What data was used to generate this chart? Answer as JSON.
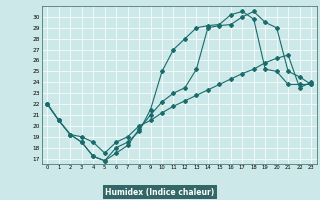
{
  "title": "",
  "xlabel": "Humidex (Indice chaleur)",
  "bg_color": "#cce8e8",
  "plot_bg": "#cce8e8",
  "line_color": "#1a6b6b",
  "grid_color": "#ffffff",
  "xlabel_bg": "#336666",
  "xlabel_fg": "#ffffff",
  "xlim": [
    -0.5,
    23.5
  ],
  "ylim": [
    16.5,
    31.0
  ],
  "xticks": [
    0,
    1,
    2,
    3,
    4,
    5,
    6,
    7,
    8,
    9,
    10,
    11,
    12,
    13,
    14,
    15,
    16,
    17,
    18,
    19,
    20,
    21,
    22,
    23
  ],
  "yticks": [
    17,
    18,
    19,
    20,
    21,
    22,
    23,
    24,
    25,
    26,
    27,
    28,
    29,
    30
  ],
  "line1_x": [
    0,
    1,
    2,
    3,
    4,
    5,
    6,
    7,
    8,
    9,
    10,
    11,
    12,
    13,
    14,
    15,
    16,
    17,
    18,
    19,
    20,
    21,
    22,
    23
  ],
  "line1_y": [
    22,
    20.5,
    19.2,
    18.5,
    17.2,
    16.8,
    17.5,
    18.2,
    19.7,
    21.0,
    22.2,
    23.0,
    23.5,
    25.2,
    29.0,
    29.2,
    29.3,
    30.0,
    30.5,
    29.5,
    29.0,
    25.0,
    24.5,
    23.8
  ],
  "line2_x": [
    0,
    1,
    2,
    3,
    4,
    5,
    6,
    7,
    8,
    9,
    10,
    11,
    12,
    13,
    14,
    15,
    16,
    17,
    18,
    19,
    20,
    21,
    22,
    23
  ],
  "line2_y": [
    22,
    20.5,
    19.2,
    18.5,
    17.2,
    16.8,
    18.0,
    18.5,
    19.5,
    21.5,
    25.0,
    27.0,
    28.0,
    29.0,
    29.2,
    29.3,
    30.2,
    30.5,
    29.8,
    25.2,
    25.0,
    23.8,
    23.8,
    23.8
  ],
  "line3_x": [
    0,
    1,
    2,
    3,
    4,
    5,
    6,
    7,
    8,
    9,
    10,
    11,
    12,
    13,
    14,
    15,
    16,
    17,
    18,
    19,
    20,
    21,
    22,
    23
  ],
  "line3_y": [
    22,
    20.5,
    19.2,
    19.0,
    18.5,
    17.5,
    18.5,
    19.0,
    20.0,
    20.5,
    21.2,
    21.8,
    22.3,
    22.8,
    23.3,
    23.8,
    24.3,
    24.8,
    25.2,
    25.8,
    26.2,
    26.5,
    23.5,
    24.0
  ]
}
